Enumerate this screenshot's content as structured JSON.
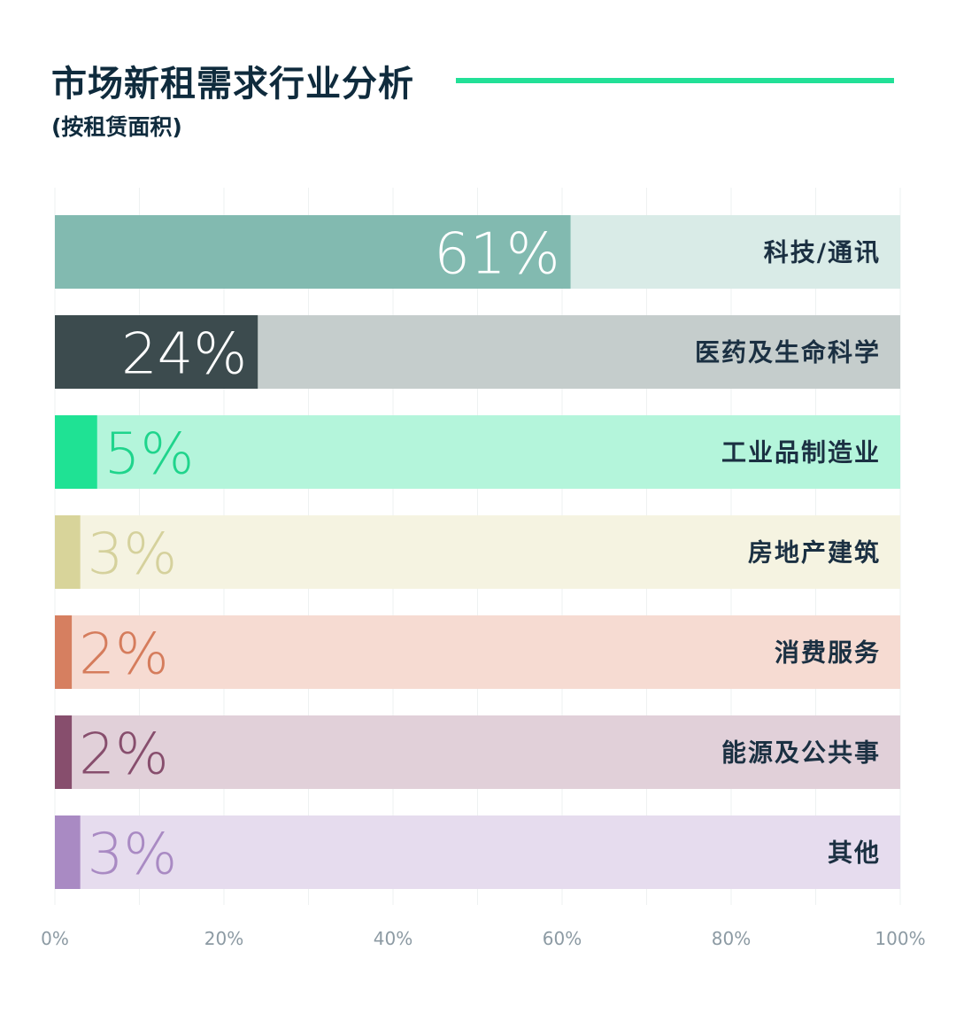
{
  "header": {
    "title": "市场新租需求行业分析",
    "subtitle": "(按租赁面积)"
  },
  "colors": {
    "title_rule": "#22e097",
    "title_text": "#0f2b3d"
  },
  "chart_data": {
    "type": "bar",
    "orientation": "horizontal",
    "title": "市场新租需求行业分析",
    "subtitle": "(按租赁面积)",
    "xlim": [
      0,
      100
    ],
    "x_ticks": [
      {
        "value": 0,
        "label": "0%"
      },
      {
        "value": 20,
        "label": "20%"
      },
      {
        "value": 40,
        "label": "40%"
      },
      {
        "value": 60,
        "label": "60%"
      },
      {
        "value": 80,
        "label": "80%"
      },
      {
        "value": 100,
        "label": "100%"
      }
    ],
    "grid": true,
    "legend": "none",
    "bars": [
      {
        "category": "科技/通讯",
        "value": 61,
        "label": "61%",
        "fill": "#82bab0",
        "track": "#d9ebe7",
        "label_color": "#ffffff",
        "label_inside": true
      },
      {
        "category": "医药及生命科学",
        "value": 24,
        "label": "24%",
        "fill": "#3c4b4e",
        "track": "#c5cdcc",
        "label_color": "#ffffff",
        "label_inside": true
      },
      {
        "category": "工业品制造业",
        "value": 5,
        "label": "5%",
        "fill": "#1fe294",
        "track": "#b4f5db",
        "label_color": "#1fd48c",
        "label_inside": false
      },
      {
        "category": "房地产建筑",
        "value": 3,
        "label": "3%",
        "fill": "#d8d49a",
        "track": "#f5f3e1",
        "label_color": "#d5d19c",
        "label_inside": false
      },
      {
        "category": "消费服务",
        "value": 2,
        "label": "2%",
        "fill": "#d67f60",
        "track": "#f6dbd2",
        "label_color": "#d57c5c",
        "label_inside": false
      },
      {
        "category": "能源及公共事",
        "value": 2,
        "label": "2%",
        "fill": "#874e6d",
        "track": "#e1d0d9",
        "label_color": "#874e6d",
        "label_inside": false
      },
      {
        "category": "其他",
        "value": 3,
        "label": "3%",
        "fill": "#a98ac3",
        "track": "#e6dcee",
        "label_color": "#a98ac3",
        "label_inside": false
      }
    ]
  }
}
